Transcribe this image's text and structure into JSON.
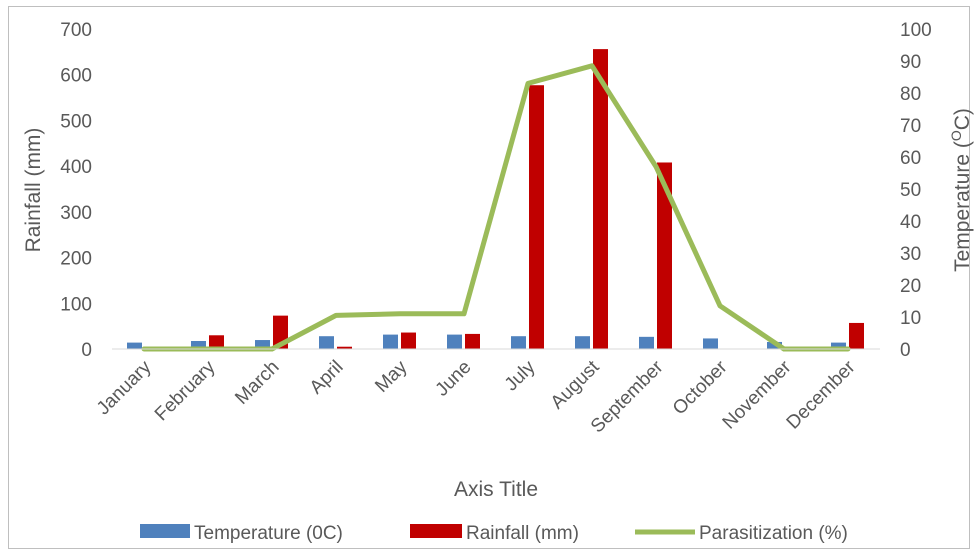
{
  "chart_data": {
    "type": "bar",
    "categories": [
      "January",
      "February",
      "March",
      "April",
      "May",
      "June",
      "July",
      "August",
      "September",
      "October",
      "November",
      "December"
    ],
    "series": [
      {
        "name": "Temperature (0C)",
        "axis": "right",
        "kind": "bar",
        "color": "#4f81bd",
        "values": [
          2.0,
          2.5,
          2.8,
          4.0,
          4.5,
          4.5,
          4.0,
          4.0,
          3.8,
          3.3,
          2.2,
          2.0
        ]
      },
      {
        "name": "Rainfall (mm)",
        "axis": "left",
        "kind": "bar",
        "color": "#c00000",
        "values": [
          0,
          30,
          73,
          5,
          36,
          33,
          577,
          656,
          408,
          0,
          0,
          57
        ]
      },
      {
        "name": "Parasitization (%)",
        "axis": "right",
        "kind": "line",
        "color": "#9bbb59",
        "values": [
          0,
          0,
          0,
          10.5,
          11,
          11,
          83,
          88.5,
          57,
          13.5,
          0,
          0
        ]
      }
    ],
    "ylabel": "Rainfall (mm)",
    "y2label_prefix": "Temperature (",
    "y2label_sup": "O",
    "y2label_suffix": "C)",
    "xlabel": "Axis Title",
    "ylim": [
      0,
      700
    ],
    "y2lim": [
      0,
      100
    ],
    "yticks": [
      0,
      100,
      200,
      300,
      400,
      500,
      600,
      700
    ],
    "y2ticks": [
      0,
      10,
      20,
      30,
      40,
      50,
      60,
      70,
      80,
      90,
      100
    ],
    "grid": false,
    "legend": "bottom"
  }
}
